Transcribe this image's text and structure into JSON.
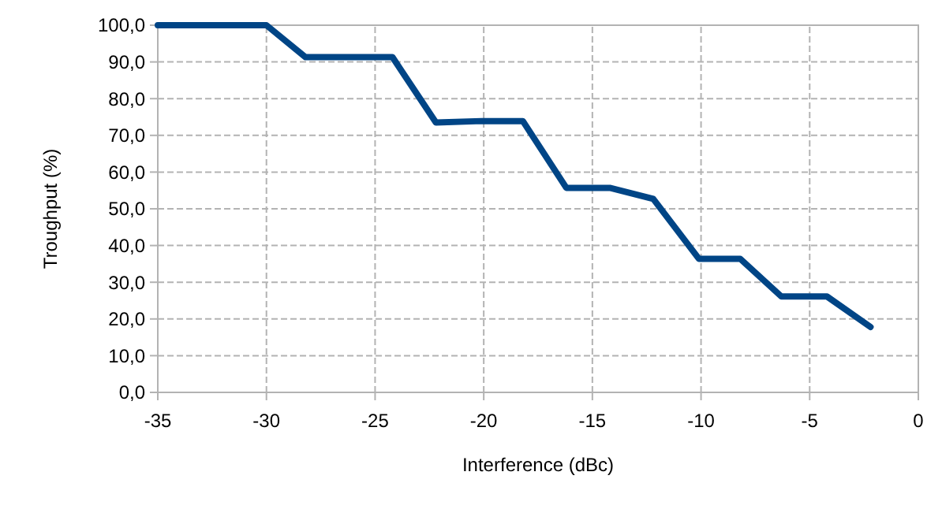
{
  "chart_data": {
    "type": "line",
    "xlabel": "Interference (dBc)",
    "ylabel": "Troughput (%)",
    "x": [
      -35,
      -30,
      -28.2,
      -24.2,
      -22.2,
      -20.1,
      -18.2,
      -16.2,
      -14.2,
      -12.2,
      -10.1,
      -8.2,
      -6.3,
      -4.2,
      -2.2
    ],
    "series": [
      {
        "color": "#004586",
        "values": [
          100,
          100,
          91.3,
          91.3,
          73.5,
          73.9,
          73.9,
          55.7,
          55.7,
          52.7,
          36.4,
          36.4,
          26.1,
          26.1,
          17.8
        ]
      }
    ],
    "xlim": [
      -35,
      0
    ],
    "xticks": [
      -35,
      -30,
      -25,
      -20,
      -15,
      -10,
      -5,
      0
    ],
    "ylim": [
      0,
      100
    ],
    "yticks": [
      {
        "value": 0,
        "label": "0,0"
      },
      {
        "value": 10,
        "label": "10,0"
      },
      {
        "value": 20,
        "label": "20,0"
      },
      {
        "value": 30,
        "label": "30,0"
      },
      {
        "value": 40,
        "label": "40,0"
      },
      {
        "value": 50,
        "label": "50,0"
      },
      {
        "value": 60,
        "label": "60,0"
      },
      {
        "value": 70,
        "label": "70,0"
      },
      {
        "value": 80,
        "label": "80,0"
      },
      {
        "value": 90,
        "label": "90,0"
      },
      {
        "value": 100,
        "label": "100,0"
      }
    ],
    "grid": true,
    "marker": "none",
    "line_style": "solid"
  }
}
